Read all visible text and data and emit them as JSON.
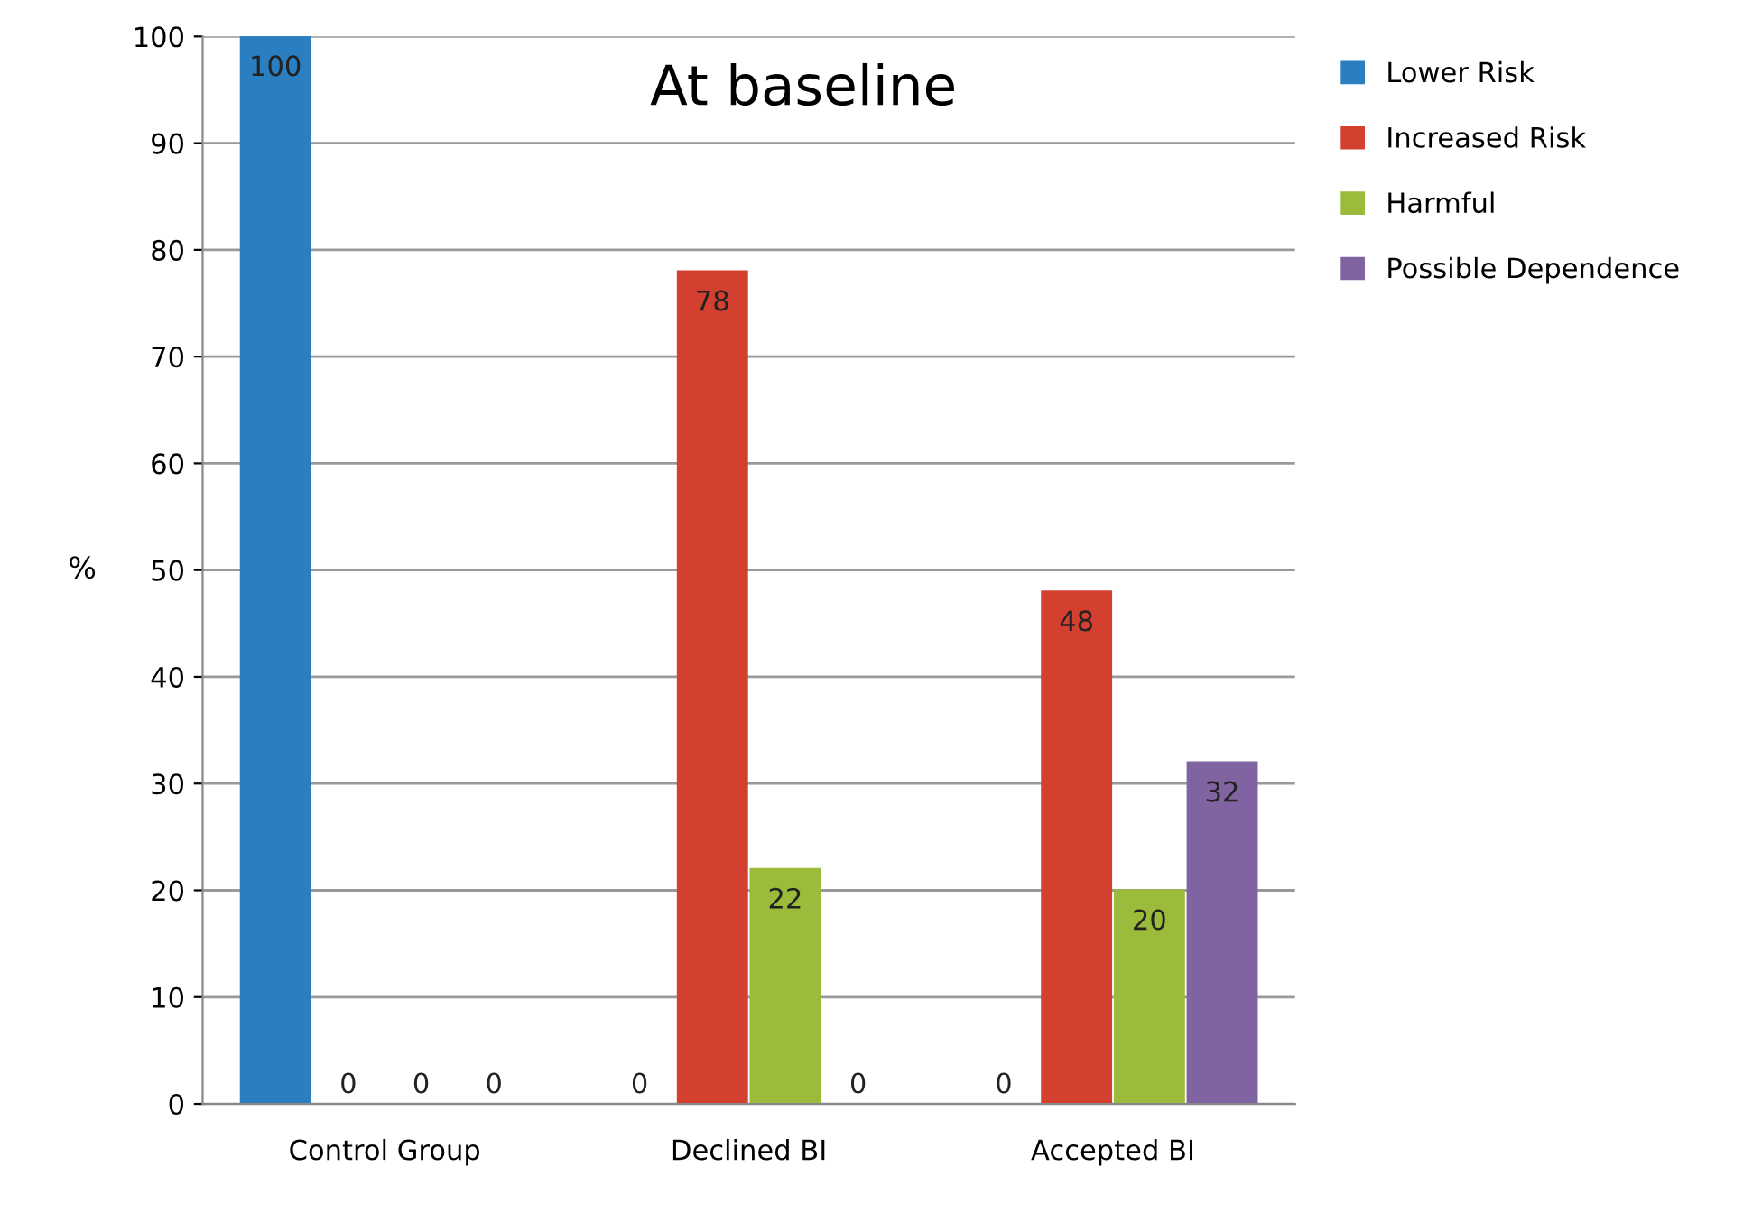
{
  "chart_data": {
    "type": "bar",
    "title": "At baseline",
    "ylabel": "%",
    "categories": [
      "Control Group",
      "Declined BI",
      "Accepted BI"
    ],
    "series": [
      {
        "name": "Lower Risk",
        "color": "#2b7fc0",
        "values": [
          100,
          0,
          0
        ]
      },
      {
        "name": "Increased Risk",
        "color": "#d4402f",
        "values": [
          0,
          78,
          48
        ]
      },
      {
        "name": "Harmful",
        "color": "#9bbb3b",
        "values": [
          0,
          22,
          20
        ]
      },
      {
        "name": "Possible Dependence",
        "color": "#8064a2",
        "values": [
          0,
          0,
          32
        ]
      }
    ],
    "ylim": [
      0,
      100
    ],
    "yticks": [
      0,
      10,
      20,
      30,
      40,
      50,
      60,
      70,
      80,
      90,
      100
    ],
    "grid": "y",
    "legend": "right",
    "data_labels": true
  }
}
